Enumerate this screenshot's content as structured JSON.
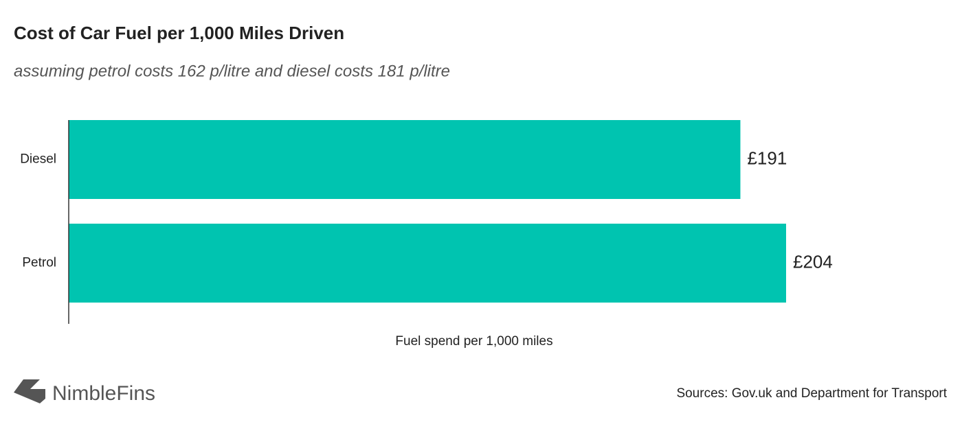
{
  "chart_data": {
    "type": "bar",
    "orientation": "horizontal",
    "title": "Cost of Car Fuel per 1,000 Miles Driven",
    "subtitle": "assuming petrol costs 162 p/litre and diesel costs 181 p/litre",
    "categories": [
      "Diesel",
      "Petrol"
    ],
    "values": [
      191,
      204
    ],
    "value_labels": [
      "£191",
      "£204"
    ],
    "color": "#00c4b0",
    "x_label": "Fuel spend per 1,000 miles",
    "source": "Sources: Gov.uk and Department for Transport",
    "brand": "NimbleFins"
  }
}
